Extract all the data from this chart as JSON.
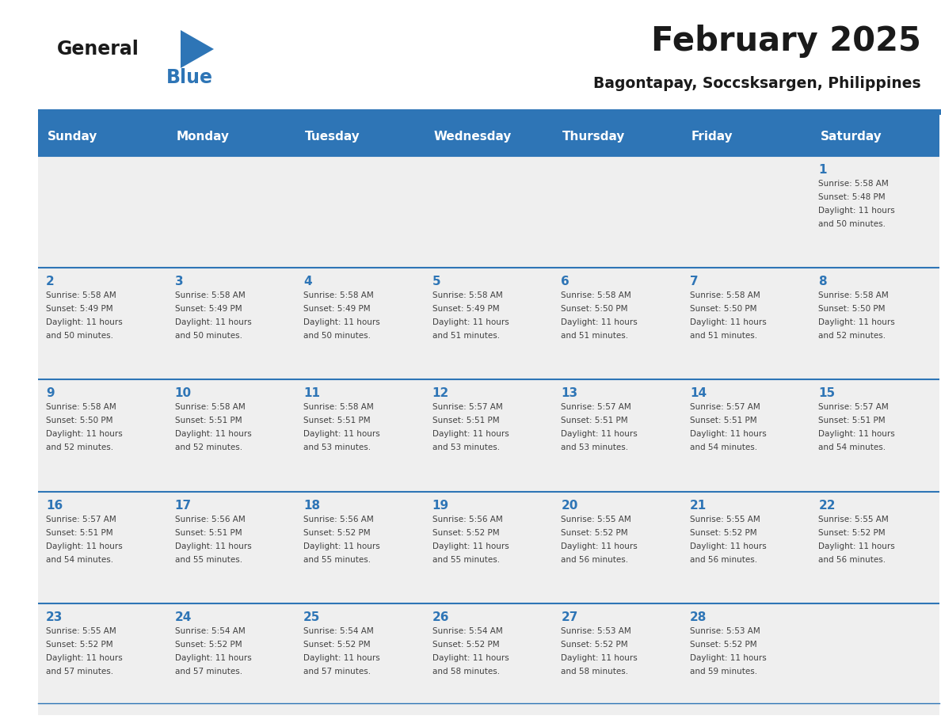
{
  "title": "February 2025",
  "subtitle": "Bagontapay, Soccsksargen, Philippines",
  "header_bg": "#2E75B6",
  "header_text": "#FFFFFF",
  "cell_bg": "#EFEFEF",
  "border_color": "#2E75B6",
  "title_color": "#1a1a1a",
  "subtitle_color": "#1a1a1a",
  "logo_general_color": "#1a1a1a",
  "logo_blue_color": "#2E75B6",
  "day_number_color": "#2E75B6",
  "cell_text_color": "#404040",
  "day_names": [
    "Sunday",
    "Monday",
    "Tuesday",
    "Wednesday",
    "Thursday",
    "Friday",
    "Saturday"
  ],
  "calendar": [
    [
      null,
      null,
      null,
      null,
      null,
      null,
      {
        "day": "1",
        "sunrise": "5:58 AM",
        "sunset": "5:48 PM",
        "dl1": "Daylight: 11 hours",
        "dl2": "and 50 minutes."
      }
    ],
    [
      {
        "day": "2",
        "sunrise": "5:58 AM",
        "sunset": "5:49 PM",
        "dl1": "Daylight: 11 hours",
        "dl2": "and 50 minutes."
      },
      {
        "day": "3",
        "sunrise": "5:58 AM",
        "sunset": "5:49 PM",
        "dl1": "Daylight: 11 hours",
        "dl2": "and 50 minutes."
      },
      {
        "day": "4",
        "sunrise": "5:58 AM",
        "sunset": "5:49 PM",
        "dl1": "Daylight: 11 hours",
        "dl2": "and 50 minutes."
      },
      {
        "day": "5",
        "sunrise": "5:58 AM",
        "sunset": "5:49 PM",
        "dl1": "Daylight: 11 hours",
        "dl2": "and 51 minutes."
      },
      {
        "day": "6",
        "sunrise": "5:58 AM",
        "sunset": "5:50 PM",
        "dl1": "Daylight: 11 hours",
        "dl2": "and 51 minutes."
      },
      {
        "day": "7",
        "sunrise": "5:58 AM",
        "sunset": "5:50 PM",
        "dl1": "Daylight: 11 hours",
        "dl2": "and 51 minutes."
      },
      {
        "day": "8",
        "sunrise": "5:58 AM",
        "sunset": "5:50 PM",
        "dl1": "Daylight: 11 hours",
        "dl2": "and 52 minutes."
      }
    ],
    [
      {
        "day": "9",
        "sunrise": "5:58 AM",
        "sunset": "5:50 PM",
        "dl1": "Daylight: 11 hours",
        "dl2": "and 52 minutes."
      },
      {
        "day": "10",
        "sunrise": "5:58 AM",
        "sunset": "5:51 PM",
        "dl1": "Daylight: 11 hours",
        "dl2": "and 52 minutes."
      },
      {
        "day": "11",
        "sunrise": "5:58 AM",
        "sunset": "5:51 PM",
        "dl1": "Daylight: 11 hours",
        "dl2": "and 53 minutes."
      },
      {
        "day": "12",
        "sunrise": "5:57 AM",
        "sunset": "5:51 PM",
        "dl1": "Daylight: 11 hours",
        "dl2": "and 53 minutes."
      },
      {
        "day": "13",
        "sunrise": "5:57 AM",
        "sunset": "5:51 PM",
        "dl1": "Daylight: 11 hours",
        "dl2": "and 53 minutes."
      },
      {
        "day": "14",
        "sunrise": "5:57 AM",
        "sunset": "5:51 PM",
        "dl1": "Daylight: 11 hours",
        "dl2": "and 54 minutes."
      },
      {
        "day": "15",
        "sunrise": "5:57 AM",
        "sunset": "5:51 PM",
        "dl1": "Daylight: 11 hours",
        "dl2": "and 54 minutes."
      }
    ],
    [
      {
        "day": "16",
        "sunrise": "5:57 AM",
        "sunset": "5:51 PM",
        "dl1": "Daylight: 11 hours",
        "dl2": "and 54 minutes."
      },
      {
        "day": "17",
        "sunrise": "5:56 AM",
        "sunset": "5:51 PM",
        "dl1": "Daylight: 11 hours",
        "dl2": "and 55 minutes."
      },
      {
        "day": "18",
        "sunrise": "5:56 AM",
        "sunset": "5:52 PM",
        "dl1": "Daylight: 11 hours",
        "dl2": "and 55 minutes."
      },
      {
        "day": "19",
        "sunrise": "5:56 AM",
        "sunset": "5:52 PM",
        "dl1": "Daylight: 11 hours",
        "dl2": "and 55 minutes."
      },
      {
        "day": "20",
        "sunrise": "5:55 AM",
        "sunset": "5:52 PM",
        "dl1": "Daylight: 11 hours",
        "dl2": "and 56 minutes."
      },
      {
        "day": "21",
        "sunrise": "5:55 AM",
        "sunset": "5:52 PM",
        "dl1": "Daylight: 11 hours",
        "dl2": "and 56 minutes."
      },
      {
        "day": "22",
        "sunrise": "5:55 AM",
        "sunset": "5:52 PM",
        "dl1": "Daylight: 11 hours",
        "dl2": "and 56 minutes."
      }
    ],
    [
      {
        "day": "23",
        "sunrise": "5:55 AM",
        "sunset": "5:52 PM",
        "dl1": "Daylight: 11 hours",
        "dl2": "and 57 minutes."
      },
      {
        "day": "24",
        "sunrise": "5:54 AM",
        "sunset": "5:52 PM",
        "dl1": "Daylight: 11 hours",
        "dl2": "and 57 minutes."
      },
      {
        "day": "25",
        "sunrise": "5:54 AM",
        "sunset": "5:52 PM",
        "dl1": "Daylight: 11 hours",
        "dl2": "and 57 minutes."
      },
      {
        "day": "26",
        "sunrise": "5:54 AM",
        "sunset": "5:52 PM",
        "dl1": "Daylight: 11 hours",
        "dl2": "and 58 minutes."
      },
      {
        "day": "27",
        "sunrise": "5:53 AM",
        "sunset": "5:52 PM",
        "dl1": "Daylight: 11 hours",
        "dl2": "and 58 minutes."
      },
      {
        "day": "28",
        "sunrise": "5:53 AM",
        "sunset": "5:52 PM",
        "dl1": "Daylight: 11 hours",
        "dl2": "and 59 minutes."
      },
      null
    ]
  ]
}
